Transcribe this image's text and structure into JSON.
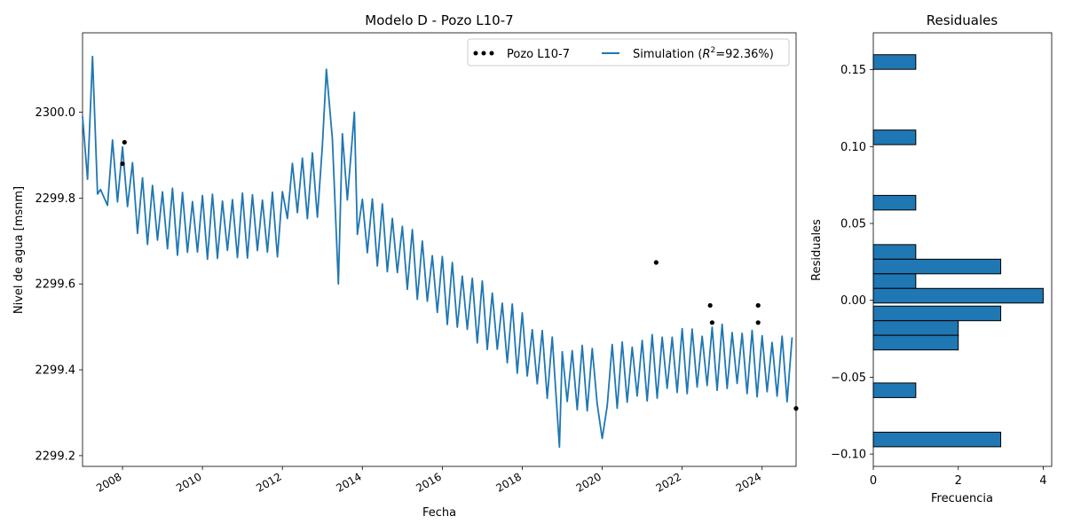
{
  "colors": {
    "simulation": "#1f77b4",
    "observed": "#000000",
    "bars": "#1f77b4",
    "bar_edge": "#000000",
    "axes": "#000000"
  },
  "chart_data": [
    {
      "type": "line",
      "title": "Modelo D - Pozo L10-7",
      "xlabel": "Fecha",
      "ylabel": "Nivel de agua [msnm]",
      "xlim": [
        2007.0,
        2024.85
      ],
      "ylim": [
        2299.175,
        2300.185
      ],
      "x_ticks": [
        2008,
        2010,
        2012,
        2014,
        2016,
        2018,
        2020,
        2022,
        2024
      ],
      "x_tick_labels": [
        "2008",
        "2010",
        "2012",
        "2014",
        "2016",
        "2018",
        "2020",
        "2022",
        "2024"
      ],
      "y_ticks": [
        2299.2,
        2299.4,
        2299.6,
        2299.8,
        2300.0
      ],
      "y_tick_labels": [
        "2299.2",
        "2299.4",
        "2299.6",
        "2299.8",
        "2300.0"
      ],
      "grid": false,
      "legend": {
        "position": "top-right",
        "entries": [
          {
            "label": "Pozo L10-7",
            "marker": "dots"
          },
          {
            "label": "Simulation",
            "r2_label": "R",
            "r2_sup": "2",
            "r2_value": "=92.36%)",
            "marker": "line"
          }
        ]
      },
      "series": [
        {
          "name": "Simulation",
          "kind": "line",
          "amplitude": 0.07,
          "period_years": 0.25,
          "baseline": [
            [
              2007.0,
              2299.92
            ],
            [
              2007.5,
              2299.86
            ],
            [
              2008.0,
              2299.86
            ],
            [
              2008.5,
              2299.77
            ],
            [
              2009.5,
              2299.74
            ],
            [
              2010.5,
              2299.73
            ],
            [
              2011.5,
              2299.74
            ],
            [
              2012.0,
              2299.74
            ],
            [
              2012.05,
              2299.82
            ],
            [
              2012.9,
              2299.83
            ],
            [
              2013.1,
              2299.88
            ],
            [
              2013.8,
              2299.87
            ],
            [
              2013.9,
              2299.75
            ],
            [
              2014.5,
              2299.71
            ],
            [
              2015.0,
              2299.67
            ],
            [
              2016.0,
              2299.59
            ],
            [
              2017.0,
              2299.53
            ],
            [
              2018.0,
              2299.46
            ],
            [
              2019.0,
              2299.38
            ],
            [
              2020.0,
              2299.38
            ],
            [
              2021.0,
              2299.4
            ],
            [
              2022.0,
              2299.42
            ],
            [
              2023.0,
              2299.43
            ],
            [
              2024.0,
              2299.41
            ],
            [
              2024.85,
              2299.4
            ]
          ],
          "features": [
            [
              2007.25,
              2300.13
            ],
            [
              2007.45,
              2299.82
            ],
            [
              2013.1,
              2300.1
            ],
            [
              2013.4,
              2299.6
            ],
            [
              2013.8,
              2300.0
            ],
            [
              2018.93,
              2299.22
            ],
            [
              2020.0,
              2299.24
            ]
          ]
        },
        {
          "name": "Pozo L10-7",
          "kind": "scatter",
          "points": [
            [
              2008.05,
              2299.93
            ],
            [
              2008.0,
              2299.88
            ],
            [
              2021.35,
              2299.65
            ],
            [
              2022.7,
              2299.55
            ],
            [
              2022.75,
              2299.51
            ],
            [
              2023.9,
              2299.55
            ],
            [
              2023.9,
              2299.51
            ],
            [
              2024.85,
              2299.31
            ]
          ]
        }
      ]
    },
    {
      "type": "bar",
      "orientation": "horizontal",
      "title": "Residuales",
      "xlabel": "Frecuencia",
      "ylabel": "Residuales",
      "xlim": [
        0,
        4.2
      ],
      "ylim": [
        -0.108,
        0.174
      ],
      "x_ticks": [
        0,
        2,
        4
      ],
      "x_tick_labels": [
        "0",
        "2",
        "4"
      ],
      "y_ticks": [
        -0.1,
        -0.05,
        0.0,
        0.05,
        0.1,
        0.15
      ],
      "y_tick_labels": [
        "−0.10",
        "−0.05",
        "0.00",
        "0.05",
        "0.10",
        "0.15"
      ],
      "bin_width": 0.0095,
      "bins": [
        {
          "center": 0.155,
          "count": 1
        },
        {
          "center": 0.106,
          "count": 1
        },
        {
          "center": 0.0635,
          "count": 1
        },
        {
          "center": 0.0315,
          "count": 1
        },
        {
          "center": 0.022,
          "count": 3
        },
        {
          "center": 0.0125,
          "count": 1
        },
        {
          "center": 0.003,
          "count": 4
        },
        {
          "center": -0.0085,
          "count": 3
        },
        {
          "center": -0.018,
          "count": 2
        },
        {
          "center": -0.0275,
          "count": 2
        },
        {
          "center": -0.0585,
          "count": 1
        },
        {
          "center": -0.0905,
          "count": 3
        }
      ]
    }
  ]
}
